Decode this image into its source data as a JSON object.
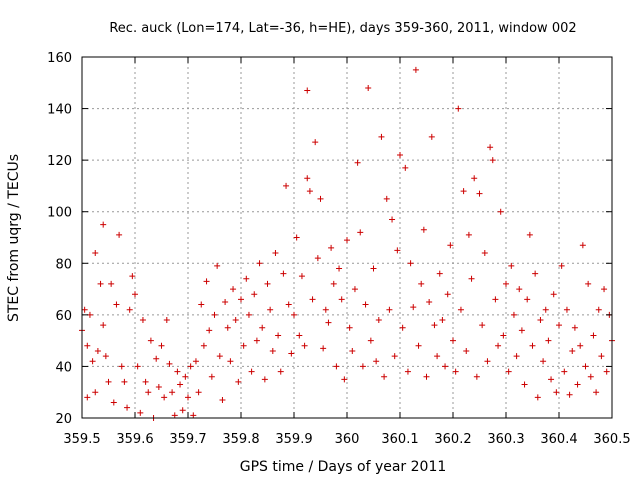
{
  "chart_data": {
    "type": "scatter",
    "title": "Rec. auck (Lon=174, Lat=-36, h=HE), days 359-360, 2011, window 002",
    "xlabel": "GPS time / Days of year 2011",
    "ylabel": "STEC from uqrg / TECUs",
    "xlim": [
      359.5,
      360.5
    ],
    "ylim": [
      20,
      160
    ],
    "grid": true,
    "marker": "+",
    "color": "#cc0000",
    "x_ticks": [
      359.5,
      359.6,
      359.7,
      359.8,
      359.9,
      360.0,
      360.1,
      360.2,
      360.3,
      360.4,
      360.5
    ],
    "x_tick_labels": [
      "359.5",
      "359.6",
      "359.7",
      "359.8",
      "359.9",
      "360",
      "360.1",
      "360.2",
      "360.3",
      "360.4",
      "360.5"
    ],
    "y_ticks": [
      20,
      40,
      60,
      80,
      100,
      120,
      140,
      160
    ],
    "y_tick_labels": [
      "20",
      "40",
      "60",
      "80",
      "100",
      "120",
      "140",
      "160"
    ],
    "series": [
      {
        "name": "STEC",
        "points": [
          [
            359.5,
            54
          ],
          [
            359.505,
            62
          ],
          [
            359.51,
            48
          ],
          [
            359.51,
            28
          ],
          [
            359.515,
            60
          ],
          [
            359.52,
            42
          ],
          [
            359.525,
            84
          ],
          [
            359.525,
            30
          ],
          [
            359.53,
            46
          ],
          [
            359.535,
            72
          ],
          [
            359.54,
            95
          ],
          [
            359.54,
            56
          ],
          [
            359.545,
            44
          ],
          [
            359.55,
            34
          ],
          [
            359.555,
            72
          ],
          [
            359.56,
            26
          ],
          [
            359.565,
            64
          ],
          [
            359.57,
            91
          ],
          [
            359.575,
            40
          ],
          [
            359.58,
            34
          ],
          [
            359.585,
            24
          ],
          [
            359.59,
            62
          ],
          [
            359.595,
            75
          ],
          [
            359.6,
            68
          ],
          [
            359.605,
            40
          ],
          [
            359.61,
            22
          ],
          [
            359.615,
            58
          ],
          [
            359.62,
            34
          ],
          [
            359.625,
            30
          ],
          [
            359.63,
            50
          ],
          [
            359.635,
            20
          ],
          [
            359.64,
            43
          ],
          [
            359.645,
            32
          ],
          [
            359.65,
            48
          ],
          [
            359.655,
            28
          ],
          [
            359.66,
            58
          ],
          [
            359.665,
            41
          ],
          [
            359.67,
            30
          ],
          [
            359.675,
            21
          ],
          [
            359.68,
            38
          ],
          [
            359.685,
            33
          ],
          [
            359.69,
            23
          ],
          [
            359.695,
            36
          ],
          [
            359.7,
            28
          ],
          [
            359.705,
            40
          ],
          [
            359.71,
            21
          ],
          [
            359.715,
            42
          ],
          [
            359.72,
            30
          ],
          [
            359.725,
            64
          ],
          [
            359.73,
            48
          ],
          [
            359.735,
            73
          ],
          [
            359.74,
            54
          ],
          [
            359.745,
            36
          ],
          [
            359.75,
            60
          ],
          [
            359.755,
            79
          ],
          [
            359.76,
            44
          ],
          [
            359.765,
            27
          ],
          [
            359.77,
            65
          ],
          [
            359.775,
            55
          ],
          [
            359.78,
            42
          ],
          [
            359.785,
            70
          ],
          [
            359.79,
            58
          ],
          [
            359.795,
            34
          ],
          [
            359.8,
            66
          ],
          [
            359.805,
            48
          ],
          [
            359.81,
            74
          ],
          [
            359.815,
            60
          ],
          [
            359.82,
            38
          ],
          [
            359.825,
            68
          ],
          [
            359.83,
            50
          ],
          [
            359.835,
            80
          ],
          [
            359.84,
            55
          ],
          [
            359.845,
            35
          ],
          [
            359.85,
            72
          ],
          [
            359.855,
            62
          ],
          [
            359.86,
            46
          ],
          [
            359.865,
            84
          ],
          [
            359.87,
            52
          ],
          [
            359.875,
            38
          ],
          [
            359.88,
            76
          ],
          [
            359.885,
            110
          ],
          [
            359.89,
            64
          ],
          [
            359.895,
            45
          ],
          [
            359.9,
            60
          ],
          [
            359.905,
            90
          ],
          [
            359.91,
            52
          ],
          [
            359.915,
            75
          ],
          [
            359.92,
            48
          ],
          [
            359.925,
            113
          ],
          [
            359.925,
            147
          ],
          [
            359.93,
            108
          ],
          [
            359.935,
            66
          ],
          [
            359.94,
            127
          ],
          [
            359.945,
            82
          ],
          [
            359.95,
            105
          ],
          [
            359.955,
            47
          ],
          [
            359.96,
            62
          ],
          [
            359.965,
            57
          ],
          [
            359.97,
            86
          ],
          [
            359.975,
            72
          ],
          [
            359.98,
            40
          ],
          [
            359.985,
            78
          ],
          [
            359.99,
            66
          ],
          [
            359.995,
            35
          ],
          [
            360.0,
            89
          ],
          [
            360.005,
            55
          ],
          [
            360.01,
            46
          ],
          [
            360.015,
            70
          ],
          [
            360.02,
            119
          ],
          [
            360.025,
            92
          ],
          [
            360.03,
            40
          ],
          [
            360.035,
            64
          ],
          [
            360.04,
            148
          ],
          [
            360.045,
            50
          ],
          [
            360.05,
            78
          ],
          [
            360.055,
            42
          ],
          [
            360.06,
            58
          ],
          [
            360.065,
            129
          ],
          [
            360.07,
            36
          ],
          [
            360.075,
            105
          ],
          [
            360.08,
            62
          ],
          [
            360.085,
            97
          ],
          [
            360.09,
            44
          ],
          [
            360.095,
            85
          ],
          [
            360.1,
            122
          ],
          [
            360.105,
            55
          ],
          [
            360.11,
            117
          ],
          [
            360.115,
            38
          ],
          [
            360.12,
            80
          ],
          [
            360.125,
            63
          ],
          [
            360.13,
            155
          ],
          [
            360.135,
            48
          ],
          [
            360.14,
            72
          ],
          [
            360.145,
            93
          ],
          [
            360.15,
            36
          ],
          [
            360.155,
            65
          ],
          [
            360.16,
            129
          ],
          [
            360.165,
            56
          ],
          [
            360.17,
            44
          ],
          [
            360.175,
            76
          ],
          [
            360.18,
            58
          ],
          [
            360.185,
            40
          ],
          [
            360.19,
            68
          ],
          [
            360.195,
            87
          ],
          [
            360.2,
            50
          ],
          [
            360.205,
            38
          ],
          [
            360.21,
            140
          ],
          [
            360.215,
            62
          ],
          [
            360.22,
            108
          ],
          [
            360.225,
            46
          ],
          [
            360.23,
            91
          ],
          [
            360.235,
            74
          ],
          [
            360.24,
            113
          ],
          [
            360.245,
            36
          ],
          [
            360.25,
            107
          ],
          [
            360.255,
            56
          ],
          [
            360.26,
            84
          ],
          [
            360.265,
            42
          ],
          [
            360.27,
            125
          ],
          [
            360.275,
            120
          ],
          [
            360.28,
            66
          ],
          [
            360.285,
            48
          ],
          [
            360.29,
            100
          ],
          [
            360.295,
            52
          ],
          [
            360.3,
            72
          ],
          [
            360.305,
            38
          ],
          [
            360.31,
            79
          ],
          [
            360.315,
            60
          ],
          [
            360.32,
            44
          ],
          [
            360.325,
            70
          ],
          [
            360.33,
            54
          ],
          [
            360.335,
            33
          ],
          [
            360.34,
            66
          ],
          [
            360.345,
            91
          ],
          [
            360.35,
            48
          ],
          [
            360.355,
            76
          ],
          [
            360.36,
            28
          ],
          [
            360.365,
            58
          ],
          [
            360.37,
            42
          ],
          [
            360.375,
            62
          ],
          [
            360.38,
            50
          ],
          [
            360.385,
            35
          ],
          [
            360.39,
            68
          ],
          [
            360.395,
            30
          ],
          [
            360.4,
            56
          ],
          [
            360.405,
            79
          ],
          [
            360.41,
            38
          ],
          [
            360.415,
            62
          ],
          [
            360.42,
            29
          ],
          [
            360.425,
            46
          ],
          [
            360.43,
            55
          ],
          [
            360.435,
            33
          ],
          [
            360.44,
            48
          ],
          [
            360.445,
            87
          ],
          [
            360.45,
            40
          ],
          [
            360.455,
            72
          ],
          [
            360.46,
            36
          ],
          [
            360.465,
            52
          ],
          [
            360.47,
            30
          ],
          [
            360.475,
            62
          ],
          [
            360.48,
            44
          ],
          [
            360.485,
            70
          ],
          [
            360.49,
            38
          ],
          [
            360.495,
            60
          ],
          [
            360.5,
            50
          ]
        ]
      }
    ]
  }
}
